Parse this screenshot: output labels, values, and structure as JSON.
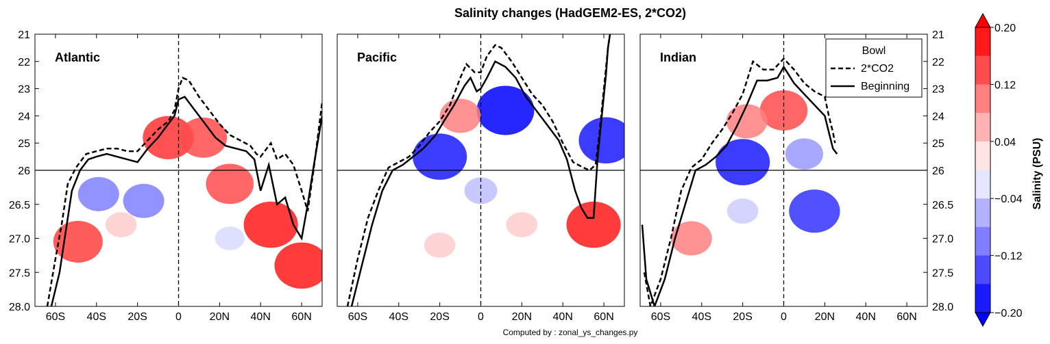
{
  "title": "Salinity changes (HadGEM2-ES, 2*CO2)",
  "footer": "Computed by : zonal_ys_changes.py",
  "colors": {
    "positive": "#ff0000",
    "negative": "#0000ff",
    "neutral": "#ffffff",
    "line": "#000000"
  },
  "chart_data": {
    "type": "heatmap",
    "x_ticks": [
      "60S",
      "40S",
      "20S",
      "0",
      "20N",
      "40N",
      "60N"
    ],
    "x_range": [
      -70,
      70
    ],
    "y_ticks_left": [
      "21",
      "22",
      "23",
      "24",
      "25",
      "26",
      "26.5",
      "27.0",
      "27.5",
      "28.0"
    ],
    "y_ticks_right": [
      "21",
      "22",
      "23",
      "24",
      "25",
      "26",
      "26.5",
      "27.0",
      "27.5",
      "28.0"
    ],
    "y_axis_note": "density (sigma); linear 21–26, stretched 26–28",
    "reference_lines": {
      "vertical_dashed_at": 0,
      "horizontal_solid_at": 26
    },
    "panels": [
      {
        "name": "Atlantic",
        "bowl_2co2": [
          [
            -64,
            28.0
          ],
          [
            -60,
            27.3
          ],
          [
            -57,
            26.8
          ],
          [
            -54,
            26.2
          ],
          [
            -50,
            25.9
          ],
          [
            -45,
            25.4
          ],
          [
            -40,
            25.3
          ],
          [
            -35,
            25.2
          ],
          [
            -30,
            25.2
          ],
          [
            -25,
            25.3
          ],
          [
            -20,
            25.3
          ],
          [
            -15,
            24.9
          ],
          [
            -10,
            24.5
          ],
          [
            -5,
            24.2
          ],
          [
            -2,
            23.8
          ],
          [
            0,
            23.0
          ],
          [
            2,
            22.6
          ],
          [
            5,
            22.7
          ],
          [
            10,
            23.3
          ],
          [
            15,
            23.8
          ],
          [
            20,
            24.3
          ],
          [
            25,
            24.7
          ],
          [
            30,
            24.9
          ],
          [
            35,
            25.1
          ],
          [
            38,
            25.4
          ],
          [
            40,
            25.5
          ],
          [
            45,
            25.0
          ],
          [
            48,
            25.6
          ],
          [
            52,
            25.4
          ],
          [
            56,
            25.8
          ],
          [
            60,
            26.3
          ],
          [
            63,
            26.6
          ],
          [
            66,
            25.9
          ],
          [
            70,
            23.5
          ]
        ],
        "bowl_beginning": [
          [
            -62,
            28.0
          ],
          [
            -58,
            27.5
          ],
          [
            -55,
            26.9
          ],
          [
            -52,
            26.3
          ],
          [
            -48,
            26.0
          ],
          [
            -44,
            25.6
          ],
          [
            -40,
            25.5
          ],
          [
            -35,
            25.4
          ],
          [
            -30,
            25.5
          ],
          [
            -25,
            25.6
          ],
          [
            -20,
            25.7
          ],
          [
            -15,
            25.2
          ],
          [
            -10,
            24.8
          ],
          [
            -5,
            24.3
          ],
          [
            -2,
            24.0
          ],
          [
            0,
            23.4
          ],
          [
            3,
            23.3
          ],
          [
            8,
            23.8
          ],
          [
            13,
            24.3
          ],
          [
            18,
            24.8
          ],
          [
            23,
            25.1
          ],
          [
            28,
            25.2
          ],
          [
            33,
            25.3
          ],
          [
            37,
            25.6
          ],
          [
            40,
            26.3
          ],
          [
            44,
            25.8
          ],
          [
            48,
            26.5
          ],
          [
            52,
            26.4
          ],
          [
            56,
            26.8
          ],
          [
            60,
            27.0
          ],
          [
            63,
            26.5
          ],
          [
            66,
            25.8
          ],
          [
            70,
            24.0
          ]
        ],
        "anomalies": [
          {
            "lat": -39,
            "sigma": 26.35,
            "value": -0.1
          },
          {
            "lat": -17,
            "sigma": 26.45,
            "value": -0.1
          },
          {
            "lat": -49,
            "sigma": 27.05,
            "value": 0.15
          },
          {
            "lat": -5,
            "sigma": 24.8,
            "value": 0.16
          },
          {
            "lat": 12,
            "sigma": 24.8,
            "value": 0.14
          },
          {
            "lat": 25,
            "sigma": 26.2,
            "value": 0.14
          },
          {
            "lat": 45,
            "sigma": 26.8,
            "value": 0.18
          },
          {
            "lat": 60,
            "sigma": 27.4,
            "value": 0.18
          },
          {
            "lat": -28,
            "sigma": 26.8,
            "value": 0.04
          },
          {
            "lat": 25,
            "sigma": 27.0,
            "value": -0.03
          }
        ]
      },
      {
        "name": "Pacific",
        "bowl_2co2": [
          [
            -65,
            28.0
          ],
          [
            -60,
            27.3
          ],
          [
            -55,
            26.7
          ],
          [
            -50,
            26.3
          ],
          [
            -45,
            25.9
          ],
          [
            -40,
            25.7
          ],
          [
            -35,
            25.5
          ],
          [
            -30,
            25.1
          ],
          [
            -25,
            24.6
          ],
          [
            -20,
            24.2
          ],
          [
            -15,
            23.6
          ],
          [
            -10,
            22.6
          ],
          [
            -7,
            22.1
          ],
          [
            -3,
            22.4
          ],
          [
            0,
            22.4
          ],
          [
            3,
            21.8
          ],
          [
            7,
            21.4
          ],
          [
            10,
            21.5
          ],
          [
            15,
            22.0
          ],
          [
            20,
            22.6
          ],
          [
            25,
            23.2
          ],
          [
            30,
            23.6
          ],
          [
            35,
            24.2
          ],
          [
            40,
            25.0
          ],
          [
            45,
            25.7
          ],
          [
            50,
            25.9
          ],
          [
            53,
            26.0
          ],
          [
            56,
            25.8
          ],
          [
            58,
            24.5
          ],
          [
            60,
            23.0
          ],
          [
            62,
            21.5
          ],
          [
            63,
            21.0
          ]
        ],
        "bowl_beginning": [
          [
            -63,
            28.0
          ],
          [
            -58,
            27.4
          ],
          [
            -53,
            26.8
          ],
          [
            -48,
            26.3
          ],
          [
            -43,
            26.0
          ],
          [
            -38,
            25.8
          ],
          [
            -33,
            25.5
          ],
          [
            -28,
            25.2
          ],
          [
            -22,
            24.7
          ],
          [
            -18,
            24.2
          ],
          [
            -13,
            23.6
          ],
          [
            -8,
            22.9
          ],
          [
            -5,
            22.6
          ],
          [
            -2,
            23.1
          ],
          [
            0,
            23.0
          ],
          [
            3,
            22.6
          ],
          [
            7,
            22.0
          ],
          [
            12,
            22.2
          ],
          [
            17,
            22.6
          ],
          [
            22,
            23.3
          ],
          [
            28,
            23.9
          ],
          [
            33,
            24.4
          ],
          [
            38,
            24.9
          ],
          [
            42,
            25.6
          ],
          [
            46,
            26.3
          ],
          [
            49,
            26.55
          ],
          [
            52,
            26.7
          ],
          [
            55,
            26.7
          ],
          [
            57,
            25.5
          ],
          [
            59,
            24.0
          ],
          [
            61,
            22.5
          ],
          [
            62,
            21.5
          ],
          [
            63,
            21.0
          ]
        ],
        "anomalies": [
          {
            "lat": -20,
            "sigma": 25.5,
            "value": -0.18
          },
          {
            "lat": 12,
            "sigma": 23.8,
            "value": -0.2
          },
          {
            "lat": -10,
            "sigma": 24.0,
            "value": 0.1
          },
          {
            "lat": 55,
            "sigma": 26.8,
            "value": 0.18
          },
          {
            "lat": 20,
            "sigma": 26.8,
            "value": 0.04
          },
          {
            "lat": -20,
            "sigma": 27.1,
            "value": 0.04
          },
          {
            "lat": 0,
            "sigma": 26.3,
            "value": -0.05
          },
          {
            "lat": 61,
            "sigma": 24.9,
            "value": -0.18
          }
        ]
      },
      {
        "name": "Indian",
        "bowl_2co2": [
          [
            -68,
            27.5
          ],
          [
            -65,
            28.0
          ],
          [
            -60,
            27.6
          ],
          [
            -55,
            27.0
          ],
          [
            -50,
            26.3
          ],
          [
            -45,
            25.9
          ],
          [
            -40,
            25.6
          ],
          [
            -35,
            25.0
          ],
          [
            -30,
            24.5
          ],
          [
            -25,
            23.9
          ],
          [
            -20,
            23.2
          ],
          [
            -15,
            22.0
          ],
          [
            -10,
            22.3
          ],
          [
            -5,
            22.3
          ],
          [
            0,
            21.9
          ],
          [
            5,
            22.3
          ],
          [
            10,
            22.8
          ],
          [
            15,
            23.1
          ],
          [
            20,
            23.3
          ],
          [
            22,
            24.0
          ],
          [
            24,
            24.6
          ],
          [
            25,
            25.0
          ]
        ],
        "bowl_beginning": [
          [
            -69,
            26.8
          ],
          [
            -67,
            27.6
          ],
          [
            -63,
            28.0
          ],
          [
            -58,
            27.6
          ],
          [
            -53,
            27.0
          ],
          [
            -48,
            26.5
          ],
          [
            -43,
            26.0
          ],
          [
            -38,
            25.8
          ],
          [
            -33,
            25.5
          ],
          [
            -28,
            25.1
          ],
          [
            -23,
            24.4
          ],
          [
            -18,
            23.6
          ],
          [
            -13,
            22.7
          ],
          [
            -8,
            22.7
          ],
          [
            -3,
            22.6
          ],
          [
            0,
            22.2
          ],
          [
            5,
            22.8
          ],
          [
            10,
            23.2
          ],
          [
            15,
            23.6
          ],
          [
            20,
            24.0
          ],
          [
            22,
            24.6
          ],
          [
            24,
            25.2
          ],
          [
            26,
            25.4
          ]
        ],
        "anomalies": [
          {
            "lat": -20,
            "sigma": 25.7,
            "value": -0.18
          },
          {
            "lat": 15,
            "sigma": 26.6,
            "value": -0.16
          },
          {
            "lat": 0,
            "sigma": 23.8,
            "value": 0.14
          },
          {
            "lat": -18,
            "sigma": 24.2,
            "value": 0.1
          },
          {
            "lat": -45,
            "sigma": 27.0,
            "value": 0.1
          },
          {
            "lat": -20,
            "sigma": 26.6,
            "value": -0.04
          },
          {
            "lat": 10,
            "sigma": 25.4,
            "value": -0.08
          }
        ]
      }
    ],
    "legend": {
      "title": "Bowl",
      "entries": [
        "2*CO2",
        "Beginning"
      ],
      "position": "upper-right of Indian panel"
    },
    "colorbar": {
      "label": "Salinity (PSU)",
      "range": [
        -0.2,
        0.2
      ],
      "tick_labels": [
        "0.20",
        "0.12",
        "0.04",
        "−0.04",
        "−0.12",
        "−0.20"
      ],
      "levels": 10
    }
  }
}
